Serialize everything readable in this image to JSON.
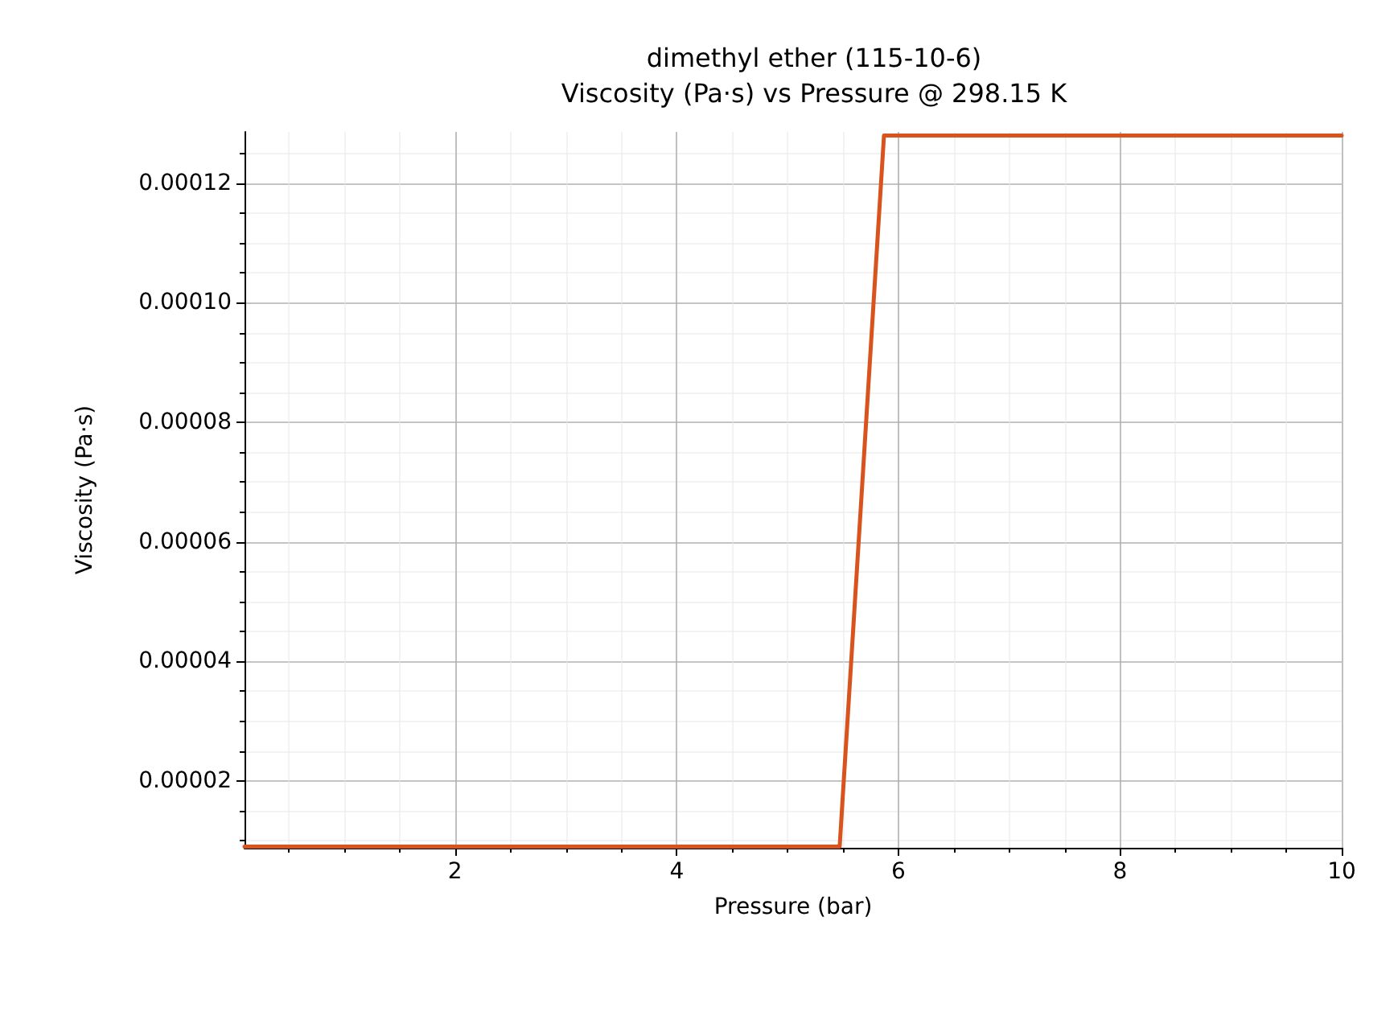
{
  "chart_data": {
    "type": "line",
    "title": "dimethyl ether (115-10-6)\nViscosity (Pa·s) vs Pressure @ 298.15 K",
    "xlabel": "Pressure (bar)",
    "ylabel": "Viscosity (Pa·s)",
    "series": [
      {
        "color": "#d9531e",
        "x": [
          0.1,
          5.47,
          5.87,
          10
        ],
        "values": [
          9e-06,
          9e-06,
          0.000128,
          0.000128
        ]
      }
    ],
    "xlim": [
      0.1,
      10
    ],
    "xticks": [
      2,
      4,
      6,
      8,
      10
    ],
    "ylim": [
      8.8e-06,
      0.0001286
    ],
    "yticks": [
      {
        "value": 2e-05,
        "label": "0.00002"
      },
      {
        "value": 4e-05,
        "label": "0.00004"
      },
      {
        "value": 6e-05,
        "label": "0.00006"
      },
      {
        "value": 8e-05,
        "label": "0.00008"
      },
      {
        "value": 0.0001,
        "label": "0.00010"
      },
      {
        "value": 0.00012,
        "label": "0.00012"
      }
    ],
    "grid": true,
    "marker": "none",
    "line_style": "solid"
  }
}
